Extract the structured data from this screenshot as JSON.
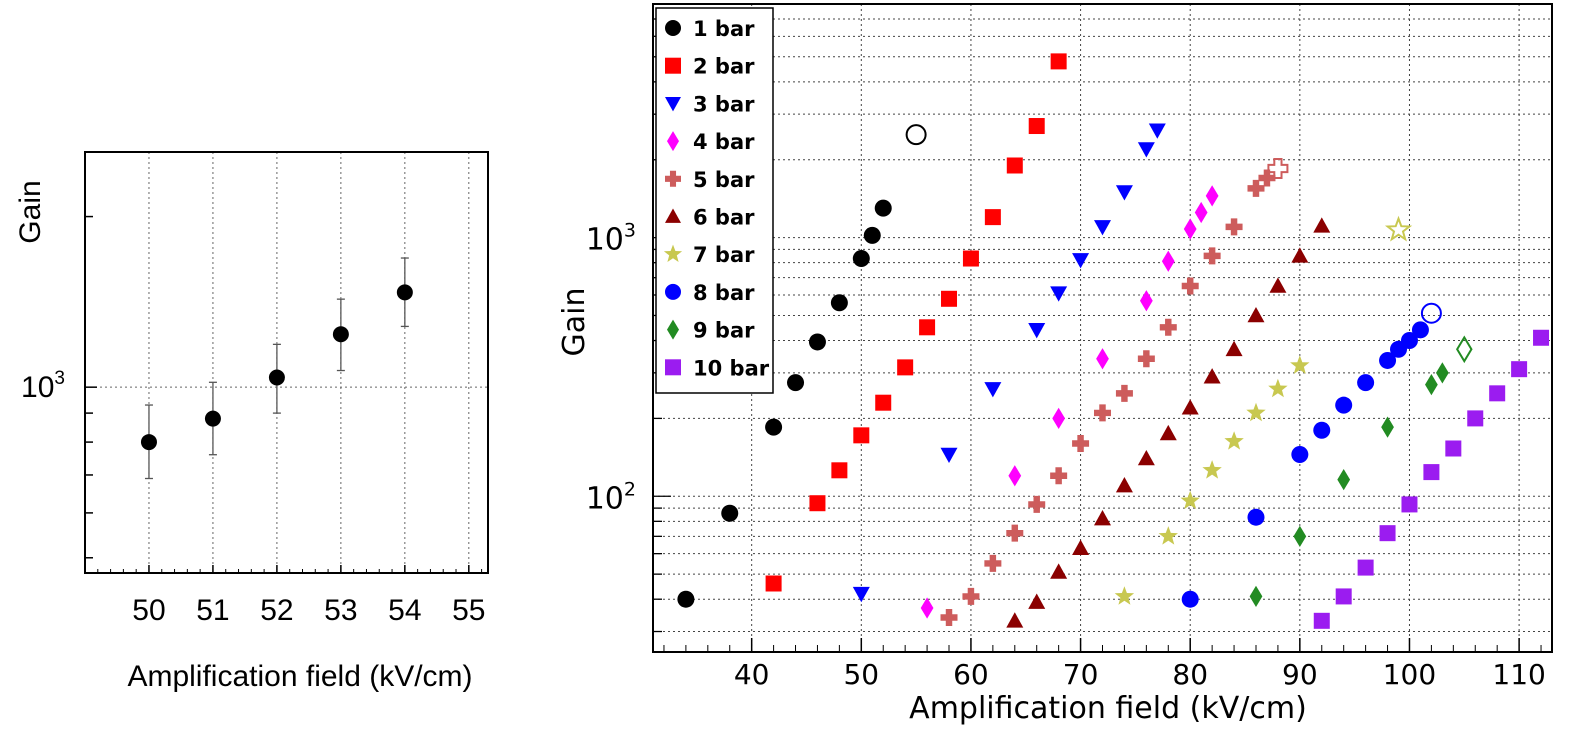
{
  "chart_data": [
    {
      "type": "scatter",
      "xlabel": "Amplification field (kV/cm)",
      "ylabel": "Gain",
      "yscale": "log",
      "xlim": [
        49,
        55.3
      ],
      "ylim": [
        470,
        2600
      ],
      "xticks": [
        "50",
        "51",
        "52",
        "53",
        "54",
        "55"
      ],
      "yticks": [
        {
          "value": 1000,
          "base": "10",
          "exp": "3"
        }
      ],
      "grid": true,
      "series": [
        {
          "name": "1 bar",
          "color": "#000000",
          "marker": "circle",
          "x": [
            50,
            51,
            52,
            53,
            54
          ],
          "y": [
            800,
            880,
            1040,
            1240,
            1470
          ],
          "err_low": [
            690,
            760,
            900,
            1070,
            1280
          ],
          "err_high": [
            930,
            1020,
            1190,
            1430,
            1690
          ]
        }
      ]
    },
    {
      "type": "scatter",
      "xlabel": "Amplification field (kV/cm)",
      "ylabel": "Gain",
      "yscale": "log",
      "xlim": [
        31,
        113
      ],
      "ylim": [
        25,
        8000
      ],
      "xticks": [
        "40",
        "50",
        "60",
        "70",
        "80",
        "90",
        "100",
        "110"
      ],
      "yticks": [
        {
          "value": 100,
          "base": "10",
          "exp": "2"
        },
        {
          "value": 1000,
          "base": "10",
          "exp": "3"
        }
      ],
      "grid": true,
      "legend": "top-left",
      "series": [
        {
          "name": "1 bar",
          "color": "#000000",
          "marker": "circle",
          "x": [
            34,
            38,
            42,
            44,
            46,
            48,
            50,
            51,
            52
          ],
          "y": [
            40,
            86,
            185,
            275,
            395,
            560,
            830,
            1020,
            1300
          ],
          "open_marker": {
            "x": 55,
            "y": 2500
          }
        },
        {
          "name": "2 bar",
          "color": "#ff0000",
          "marker": "square",
          "x": [
            42,
            46,
            48,
            50,
            52,
            54,
            56,
            58,
            60,
            62,
            64,
            66,
            68
          ],
          "y": [
            46,
            94,
            126,
            172,
            230,
            315,
            450,
            580,
            830,
            1200,
            1900,
            2700,
            4800
          ]
        },
        {
          "name": "3 bar",
          "color": "#0000ff",
          "marker": "triangle-down",
          "x": [
            50,
            58,
            62,
            66,
            68,
            70,
            72,
            74,
            76,
            77
          ],
          "y": [
            42,
            145,
            260,
            440,
            610,
            820,
            1100,
            1500,
            2200,
            2600
          ]
        },
        {
          "name": "4 bar",
          "color": "#ff00ff",
          "marker": "diamond",
          "x": [
            56,
            64,
            68,
            72,
            76,
            78,
            80,
            81,
            82
          ],
          "y": [
            37,
            120,
            200,
            340,
            570,
            810,
            1080,
            1250,
            1450
          ]
        },
        {
          "name": "5 bar",
          "color": "#cd5c5c",
          "marker": "cross",
          "x": [
            58,
            60,
            62,
            64,
            66,
            68,
            70,
            72,
            74,
            76,
            78,
            80,
            82,
            84,
            86,
            87
          ],
          "y": [
            34,
            41,
            55,
            72,
            93,
            120,
            160,
            210,
            250,
            340,
            450,
            650,
            850,
            1100,
            1550,
            1700
          ],
          "open_marker": {
            "x": 88,
            "y": 1850
          }
        },
        {
          "name": "6 bar",
          "color": "#8b0000",
          "marker": "triangle-up",
          "x": [
            64,
            66,
            68,
            70,
            72,
            74,
            76,
            78,
            80,
            82,
            84,
            86,
            88,
            90,
            92
          ],
          "y": [
            33,
            39,
            51,
            63,
            82,
            110,
            140,
            175,
            220,
            290,
            370,
            500,
            650,
            850,
            1110
          ]
        },
        {
          "name": "7 bar",
          "color": "#c8c850",
          "marker": "star",
          "x": [
            74,
            78,
            80,
            82,
            84,
            86,
            88,
            90
          ],
          "y": [
            41,
            70,
            96,
            126,
            163,
            210,
            260,
            320
          ],
          "open_marker": {
            "x": 99,
            "y": 1070
          }
        },
        {
          "name": "8 bar",
          "color": "#0000ff",
          "marker": "circle",
          "x": [
            80,
            86,
            90,
            92,
            94,
            96,
            98,
            99,
            100,
            101
          ],
          "y": [
            40,
            83,
            145,
            180,
            225,
            275,
            335,
            370,
            400,
            440
          ],
          "open_marker": {
            "x": 102,
            "y": 510
          }
        },
        {
          "name": "9 bar",
          "color": "#228b22",
          "marker": "diamond",
          "x": [
            86,
            90,
            94,
            98,
            102,
            103
          ],
          "y": [
            41,
            70,
            116,
            185,
            270,
            300
          ],
          "open_marker": {
            "x": 105,
            "y": 370
          }
        },
        {
          "name": "10 bar",
          "color": "#9b1cf0",
          "marker": "square",
          "x": [
            92,
            94,
            96,
            98,
            100,
            102,
            104,
            106,
            108,
            110,
            112
          ],
          "y": [
            33,
            41,
            53,
            72,
            93,
            124,
            153,
            200,
            250,
            310,
            410
          ]
        }
      ]
    }
  ]
}
